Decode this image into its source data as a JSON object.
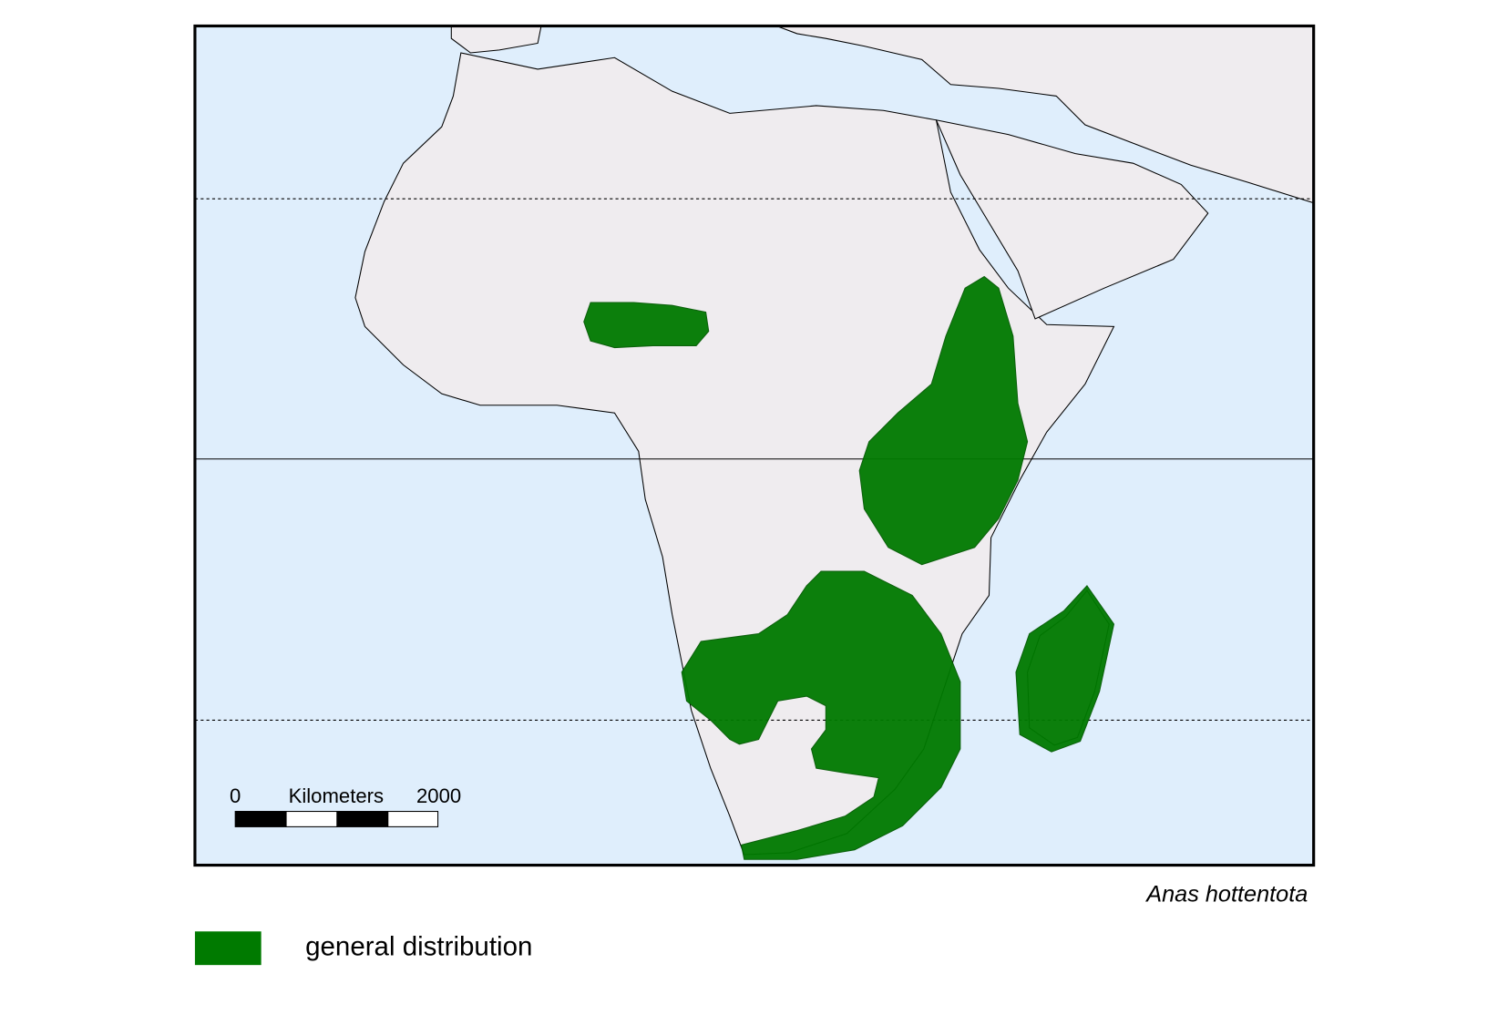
{
  "map": {
    "scale_bar": {
      "start": 0,
      "unit": "Kilometers",
      "end": 2000
    }
  },
  "species": "Anas hottentota",
  "legend": {
    "label": "general distribution"
  }
}
